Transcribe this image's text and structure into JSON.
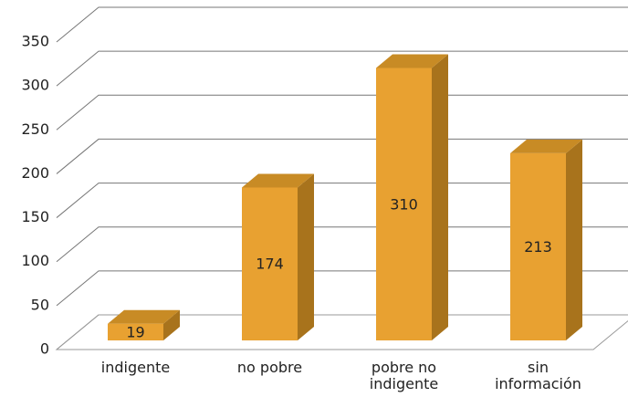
{
  "chart_data": {
    "type": "bar3d",
    "categories": [
      "indigente",
      "no pobre",
      "pobre no\nindigente",
      "sin\ninformación"
    ],
    "values": [
      19,
      174,
      310,
      213
    ],
    "color": "#e8a131",
    "ylim": [
      0,
      350
    ],
    "yticks": [
      0,
      50,
      100,
      150,
      200,
      250,
      300,
      350
    ],
    "grid": true
  }
}
